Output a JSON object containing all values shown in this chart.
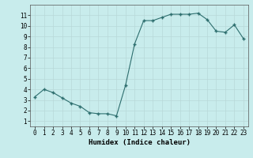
{
  "x": [
    0,
    1,
    2,
    3,
    4,
    5,
    6,
    7,
    8,
    9,
    10,
    11,
    12,
    13,
    14,
    15,
    16,
    17,
    18,
    19,
    20,
    21,
    22,
    23
  ],
  "y": [
    3.3,
    4.0,
    3.7,
    3.2,
    2.7,
    2.4,
    1.8,
    1.7,
    1.7,
    1.5,
    4.4,
    8.3,
    10.5,
    10.5,
    10.8,
    11.1,
    11.1,
    11.1,
    11.2,
    10.6,
    9.5,
    9.4,
    10.1,
    8.8
  ],
  "line_color": "#2d6e6e",
  "marker": "+",
  "marker_size": 3,
  "bg_color": "#c8ecec",
  "grid_color": "#b0d8d8",
  "xlabel": "Humidex (Indice chaleur)",
  "xlim": [
    -0.5,
    23.5
  ],
  "ylim": [
    0.5,
    12
  ],
  "yticks": [
    1,
    2,
    3,
    4,
    5,
    6,
    7,
    8,
    9,
    10,
    11
  ],
  "xticks": [
    0,
    1,
    2,
    3,
    4,
    5,
    6,
    7,
    8,
    9,
    10,
    11,
    12,
    13,
    14,
    15,
    16,
    17,
    18,
    19,
    20,
    21,
    22,
    23
  ],
  "tick_fontsize": 5.5,
  "xlabel_fontsize": 6.5
}
